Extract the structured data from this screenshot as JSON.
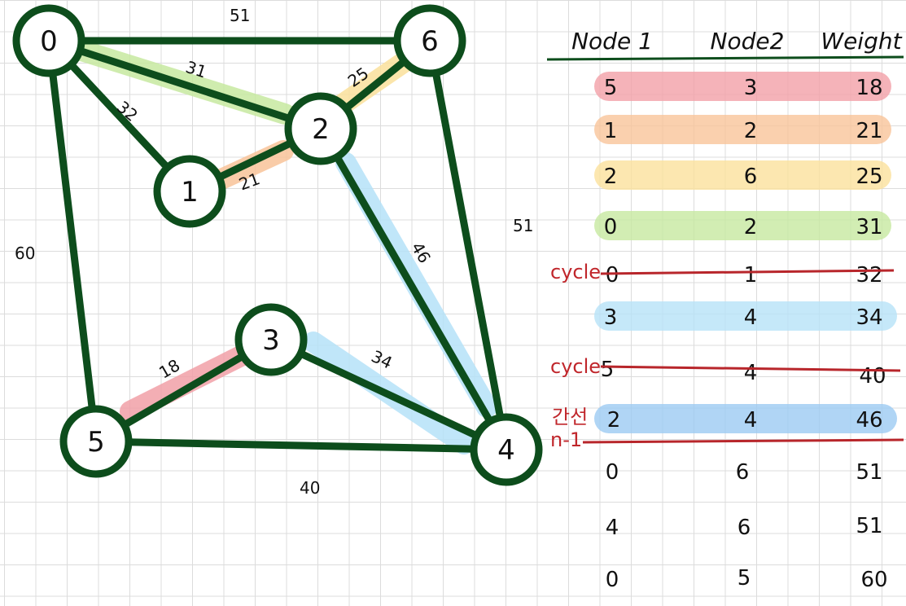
{
  "graph": {
    "nodes": [
      {
        "id": "n0",
        "label": "0"
      },
      {
        "id": "n1",
        "label": "1"
      },
      {
        "id": "n2",
        "label": "2"
      },
      {
        "id": "n3",
        "label": "3"
      },
      {
        "id": "n4",
        "label": "4"
      },
      {
        "id": "n5",
        "label": "5"
      },
      {
        "id": "n6",
        "label": "6"
      }
    ],
    "edges": [
      {
        "from": "0",
        "to": "6",
        "weight": "51"
      },
      {
        "from": "0",
        "to": "2",
        "weight": "31"
      },
      {
        "from": "0",
        "to": "1",
        "weight": "32"
      },
      {
        "from": "0",
        "to": "5",
        "weight": "60"
      },
      {
        "from": "1",
        "to": "2",
        "weight": "21"
      },
      {
        "from": "2",
        "to": "6",
        "weight": "25"
      },
      {
        "from": "2",
        "to": "4",
        "weight": "46"
      },
      {
        "from": "6",
        "to": "4",
        "weight": "51"
      },
      {
        "from": "3",
        "to": "5",
        "weight": "18"
      },
      {
        "from": "3",
        "to": "4",
        "weight": "34"
      },
      {
        "from": "5",
        "to": "4",
        "weight": "40"
      }
    ],
    "highlight_colors": {
      "red": "#f2a0a8",
      "orange": "#f9c49a",
      "yellow": "#fbe19c",
      "green": "#c7e9a0",
      "light_blue": "#b6e2f8",
      "blue": "#9ccaf2"
    },
    "edge_color": "#0d4d1c"
  },
  "table": {
    "headers": [
      "Node 1",
      "Node2",
      "Weight"
    ],
    "rows": [
      {
        "n1": "5",
        "n2": "3",
        "w": "18",
        "note": ""
      },
      {
        "n1": "1",
        "n2": "2",
        "w": "21",
        "note": ""
      },
      {
        "n1": "2",
        "n2": "6",
        "w": "25",
        "note": ""
      },
      {
        "n1": "0",
        "n2": "2",
        "w": "31",
        "note": ""
      },
      {
        "n1": "0",
        "n2": "1",
        "w": "32",
        "note": "cycle"
      },
      {
        "n1": "3",
        "n2": "4",
        "w": "34",
        "note": ""
      },
      {
        "n1": "5",
        "n2": "4",
        "w": "40",
        "note": "cycle"
      },
      {
        "n1": "2",
        "n2": "4",
        "w": "46",
        "note": "간선"
      },
      {
        "n1": "0",
        "n2": "6",
        "w": "51",
        "note": ""
      },
      {
        "n1": "4",
        "n2": "6",
        "w": "51",
        "note": ""
      },
      {
        "n1": "0",
        "n2": "5",
        "w": "60",
        "note": ""
      }
    ],
    "stop_note": "n-1"
  }
}
